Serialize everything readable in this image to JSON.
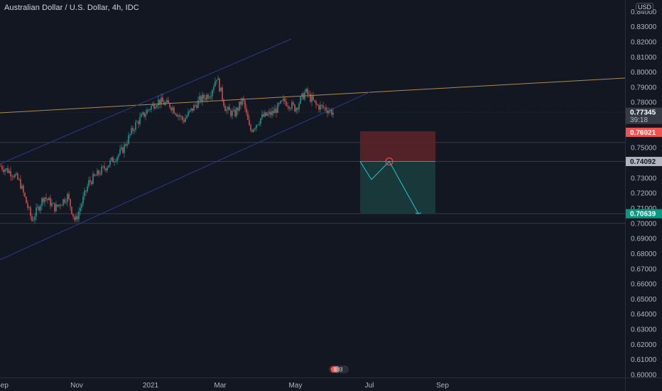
{
  "header": {
    "symbol_title": "Australian Dollar / U.S. Dollar, 4h, IDC",
    "currency": "USD"
  },
  "price_axis": {
    "ticks": [
      "0.84000",
      "0.83000",
      "0.82000",
      "0.81000",
      "0.80000",
      "0.79000",
      "0.78000",
      "0.77000",
      "0.76000",
      "0.75000",
      "0.74000",
      "0.73000",
      "0.72000",
      "0.71000",
      "0.70000",
      "0.69000",
      "0.68000",
      "0.67000",
      "0.66000",
      "0.65000",
      "0.64000",
      "0.63000",
      "0.62000",
      "0.61000",
      "0.60000"
    ],
    "current_price": "0.77345",
    "countdown": "39:18",
    "stop_price": "0.76021",
    "entry_price": "0.74092",
    "target_price": "0.70639"
  },
  "time_axis": {
    "ticks": [
      "Sep",
      "Nov",
      "2021",
      "Mar",
      "May",
      "Jul",
      "Sep"
    ]
  },
  "events_badge": {
    "count": "3"
  },
  "colors": {
    "background": "#131722",
    "up": "#26a69a",
    "down": "#ef5350",
    "trend": "#b08a4c",
    "channel": "#2d3a8c",
    "stop_zone": "#5a2429",
    "profit_zone": "#183a3c",
    "projection": "#26c6da"
  },
  "chart_data": {
    "type": "candlestick",
    "title": "Australian Dollar / U.S. Dollar, 4h, IDC",
    "ylim": [
      0.6,
      0.84
    ],
    "x_ticks": [
      "Sep",
      "Nov",
      "2021",
      "Mar",
      "May",
      "Jul",
      "Sep"
    ],
    "key_points": [
      {
        "date": "Sep",
        "close": 0.738
      },
      {
        "date": "late Sep",
        "close": 0.724
      },
      {
        "date": "Oct",
        "close": 0.701
      },
      {
        "date": "Oct",
        "close": 0.718
      },
      {
        "date": "Nov",
        "close": 0.7
      },
      {
        "date": "Dec",
        "close": 0.738
      },
      {
        "date": "Dec",
        "close": 0.752
      },
      {
        "date": "2021",
        "close": 0.77
      },
      {
        "date": "Jan",
        "close": 0.782
      },
      {
        "date": "Feb",
        "close": 0.775
      },
      {
        "date": "late Feb",
        "close": 0.8
      },
      {
        "date": "Mar",
        "close": 0.772
      },
      {
        "date": "Mar",
        "close": 0.782
      },
      {
        "date": "Apr",
        "close": 0.758
      },
      {
        "date": "Apr",
        "close": 0.774
      },
      {
        "date": "May",
        "close": 0.785
      },
      {
        "date": "May",
        "close": 0.79
      },
      {
        "date": "Jun",
        "close": 0.773
      }
    ],
    "last_price": 0.77345,
    "position": {
      "type": "short",
      "entry": 0.74092,
      "stop": 0.76021,
      "target": 0.70639
    },
    "horizontal_levels": [
      0.7535,
      0.74092,
      0.70639,
      0.7
    ],
    "trend_lines": [
      "rising channel upper",
      "rising channel lower",
      "long-term resistance"
    ]
  }
}
